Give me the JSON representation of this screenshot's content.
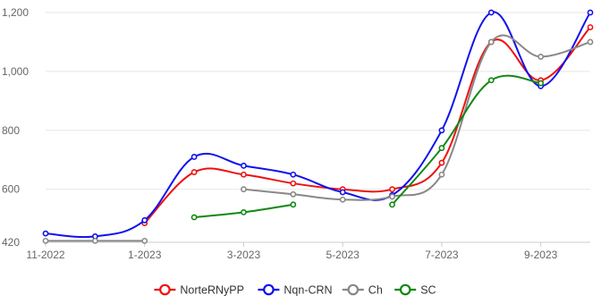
{
  "chart_data": {
    "type": "line",
    "x": [
      "2022-11",
      "2022-12",
      "2023-01",
      "2023-02",
      "2023-03",
      "2023-04",
      "2023-05",
      "2023-06",
      "2023-07",
      "2023-08",
      "2023-09",
      "2023-10"
    ],
    "x_ticks": [
      {
        "x": "2022-11",
        "label": "11-2022"
      },
      {
        "x": "2023-01",
        "label": "1-2023"
      },
      {
        "x": "2023-03",
        "label": "3-2023"
      },
      {
        "x": "2023-05",
        "label": "5-2023"
      },
      {
        "x": "2023-07",
        "label": "7-2023"
      },
      {
        "x": "2023-09",
        "label": "9-2023"
      }
    ],
    "y_ticks": [
      {
        "value": 420,
        "label": "420"
      },
      {
        "value": 600,
        "label": "600"
      },
      {
        "value": 800,
        "label": "800"
      },
      {
        "value": 1000,
        "label": "1,000"
      },
      {
        "value": 1200,
        "label": "1,200"
      }
    ],
    "ylim": [
      420,
      1200
    ],
    "grid": true,
    "legend_position": "bottom",
    "series": [
      {
        "name": "NorteRNyPP",
        "color": "#ee1111",
        "values": [
          null,
          null,
          485,
          658,
          650,
          620,
          600,
          600,
          690,
          1100,
          970,
          1150
        ]
      },
      {
        "name": "Nqn-CRN",
        "color": "#1111ee",
        "values": [
          450,
          440,
          495,
          710,
          680,
          650,
          590,
          580,
          800,
          1200,
          950,
          1200
        ]
      },
      {
        "name": "Ch",
        "color": "#888888",
        "values": [
          425,
          425,
          425,
          null,
          600,
          583,
          565,
          575,
          650,
          1100,
          1050,
          1100
        ]
      },
      {
        "name": "SC",
        "color": "#118811",
        "values": [
          null,
          null,
          null,
          505,
          522,
          548,
          null,
          548,
          740,
          970,
          960,
          null
        ]
      }
    ]
  }
}
